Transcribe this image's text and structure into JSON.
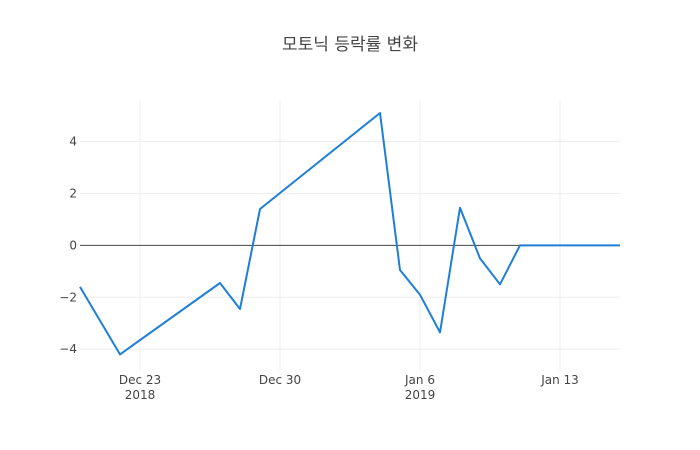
{
  "chart_data": {
    "type": "line",
    "title": "모토닉 등락률 변화",
    "xlabel": "",
    "ylabel": "",
    "x": [
      "2018-12-20",
      "2018-12-22",
      "2018-12-27",
      "2018-12-28",
      "2018-12-29",
      "2019-01-04",
      "2019-01-05",
      "2019-01-06",
      "2019-01-07",
      "2019-01-08",
      "2019-01-09",
      "2019-01-10",
      "2019-01-11",
      "2019-01-12",
      "2019-01-13",
      "2019-01-14",
      "2019-01-15",
      "2019-01-16"
    ],
    "values": [
      -1.6,
      -4.2,
      -1.45,
      -2.45,
      1.4,
      5.1,
      -0.95,
      -1.9,
      -3.35,
      1.45,
      -0.5,
      -1.5,
      0.0,
      0.0,
      0.0,
      0.0,
      0.0,
      0.0
    ],
    "x_range": [
      "2018-12-20",
      "2019-01-16"
    ],
    "ylim": [
      -4.8,
      5.6
    ],
    "y_ticks": [
      -4,
      -2,
      0,
      2,
      4
    ],
    "y_tick_labels": [
      "−4",
      "−2",
      "0",
      "2",
      "4"
    ],
    "x_ticks": [
      "2018-12-23",
      "2018-12-30",
      "2019-01-06",
      "2019-01-13"
    ],
    "x_tick_labels": [
      {
        "line1": "Dec 23",
        "line2": "2018"
      },
      {
        "line1": "Dec 30",
        "line2": ""
      },
      {
        "line1": "Jan 6",
        "line2": "2019"
      },
      {
        "line1": "Jan 13",
        "line2": ""
      }
    ],
    "grid": true,
    "line_color": "#1f7fd8",
    "zero_line_color": "#444444",
    "grid_color": "#eeeeee"
  }
}
